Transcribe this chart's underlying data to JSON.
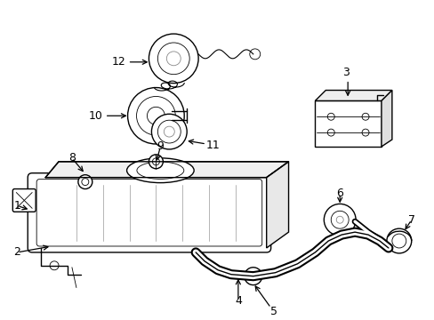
{
  "bg_color": "#ffffff",
  "line_color": "#000000",
  "lw": 1.0,
  "tlw": 0.6,
  "label_fs": 8
}
